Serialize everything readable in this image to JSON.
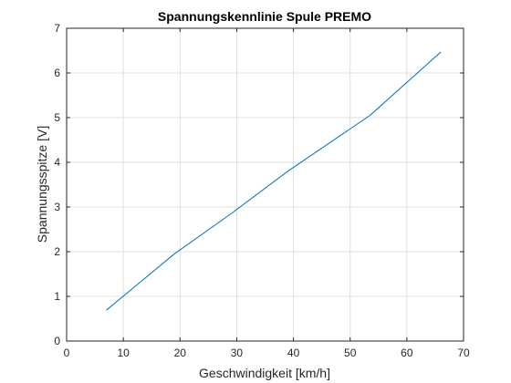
{
  "chart_data": {
    "type": "line",
    "title": "Spannungskennlinie Spule PREMO",
    "xlabel": "Geschwindigkeit [km/h]",
    "ylabel": "Spannungsspitze [V]",
    "xlim": [
      0,
      70
    ],
    "ylim": [
      0,
      7
    ],
    "xticks": [
      "0",
      "10",
      "20",
      "30",
      "40",
      "50",
      "60",
      "70"
    ],
    "yticks": [
      "0",
      "1",
      "2",
      "3",
      "4",
      "5",
      "6",
      "7"
    ],
    "grid": true,
    "legend": "none",
    "series": [
      {
        "color": "#0072bd",
        "x": [
          7,
          19,
          29,
          39,
          53.5,
          66
        ],
        "y": [
          0.69,
          1.95,
          2.85,
          3.8,
          5.05,
          6.47
        ]
      }
    ]
  }
}
